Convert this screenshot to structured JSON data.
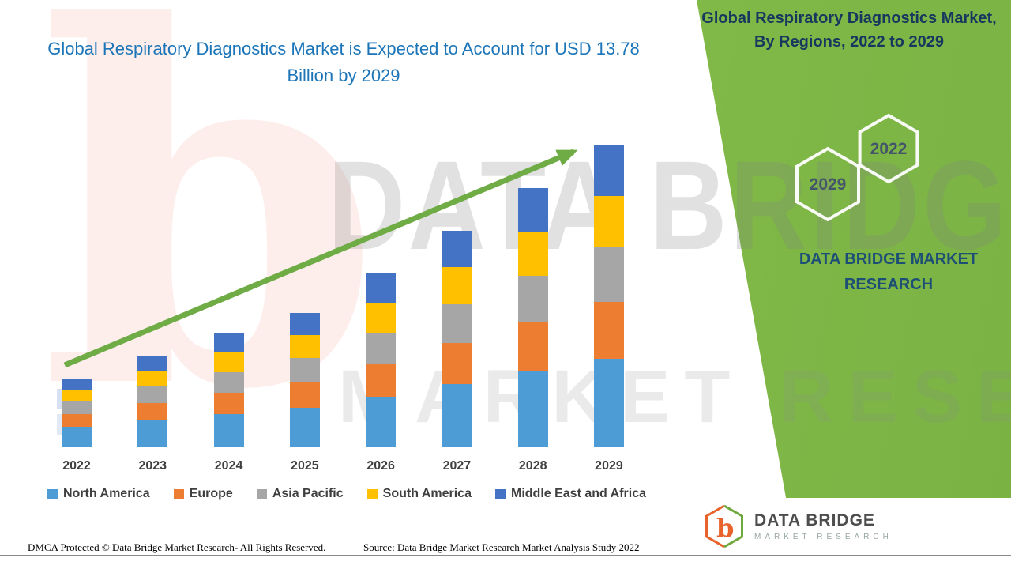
{
  "title": "Global Respiratory Diagnostics Market is Expected to Account for USD 13.78 Billion by 2029",
  "side_panel": {
    "heading": "Global Respiratory Diagnostics Market, By Regions, 2022 to 2029",
    "hexagons": [
      {
        "label": "2029"
      },
      {
        "label": "2022"
      }
    ],
    "brand_text": "DATA BRIDGE MARKET RESEARCH",
    "green_color": "#7DB347"
  },
  "watermark": {
    "letter": "b",
    "line1": "DATA BRIDGE",
    "line2": "MARKET RESEARCH"
  },
  "logo": {
    "name": "DATA BRIDGE",
    "subtitle": "MARKET RESEARCH",
    "glyph": "b"
  },
  "footer": {
    "dmca": "DMCA Protected © Data Bridge Market Research- All Rights Reserved.",
    "source": "Source: Data Bridge Market Research Market Analysis Study 2022"
  },
  "chart_data": {
    "type": "bar",
    "stacked": true,
    "title": "Global Respiratory Diagnostics Market, By Regions, 2022 to 2029",
    "unit": "USD Billion",
    "ylim": [
      0,
      14
    ],
    "grid": false,
    "legend_position": "bottom",
    "trend_arrow": true,
    "highlight_value": "USD 13.78 Billion by 2029",
    "categories": [
      "2022",
      "2023",
      "2024",
      "2025",
      "2026",
      "2027",
      "2028",
      "2029"
    ],
    "series": [
      {
        "name": "North America",
        "color": "#4E9CD5",
        "values": [
          0.9,
          1.2,
          1.49,
          1.77,
          2.29,
          2.86,
          3.42,
          4.0
        ]
      },
      {
        "name": "Europe",
        "color": "#ED7D31",
        "values": [
          0.59,
          0.79,
          0.98,
          1.16,
          1.5,
          1.87,
          2.24,
          2.62
        ]
      },
      {
        "name": "Asia Pacific",
        "color": "#A6A6A6",
        "values": [
          0.56,
          0.75,
          0.93,
          1.1,
          1.42,
          1.77,
          2.12,
          2.48
        ]
      },
      {
        "name": "South America",
        "color": "#FFC000",
        "values": [
          0.53,
          0.71,
          0.88,
          1.04,
          1.35,
          1.68,
          2.01,
          2.35
        ]
      },
      {
        "name": "Middle East and Africa",
        "color": "#4472C4",
        "values": [
          0.52,
          0.7,
          0.87,
          1.03,
          1.34,
          1.67,
          2.01,
          2.33
        ]
      }
    ],
    "totals_usd_billion": [
      3.1,
      4.15,
      5.15,
      6.1,
      7.9,
      9.85,
      11.8,
      13.78
    ],
    "arrow_color": "#6FAC46"
  }
}
